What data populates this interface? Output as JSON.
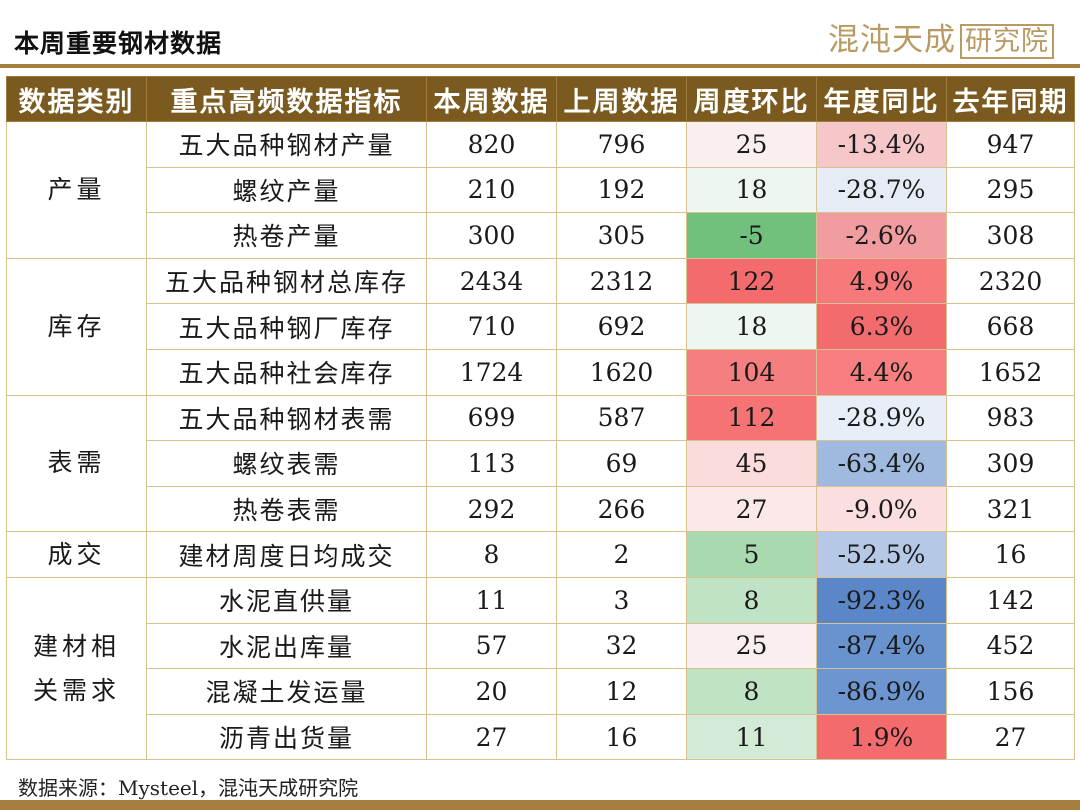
{
  "header": {
    "title": "本周重要钢材数据",
    "brand_part1": "混沌天成",
    "brand_part2": "研究院"
  },
  "table": {
    "columns": [
      "数据类别",
      "重点高频数据指标",
      "本周数据",
      "上周数据",
      "周度环比",
      "年度同比",
      "去年同期"
    ],
    "groups": [
      {
        "category": "产量",
        "rows": [
          {
            "indicator": "五大品种钢材产量",
            "this_week": "820",
            "last_week": "796",
            "wow": "25",
            "yoy": "-13.4%",
            "last_year": "947",
            "wow_color": "#fbeeef",
            "yoy_color": "#f6c7c9"
          },
          {
            "indicator": "螺纹产量",
            "this_week": "210",
            "last_week": "192",
            "wow": "18",
            "yoy": "-28.7%",
            "last_year": "295",
            "wow_color": "#eef7ef",
            "yoy_color": "#e6ecf6"
          },
          {
            "indicator": "热卷产量",
            "this_week": "300",
            "last_week": "305",
            "wow": "-5",
            "yoy": "-2.6%",
            "last_year": "308",
            "wow_color": "#72c07e",
            "yoy_color": "#f19c9e"
          }
        ]
      },
      {
        "category": "库存",
        "rows": [
          {
            "indicator": "五大品种钢材总库存",
            "this_week": "2434",
            "last_week": "2312",
            "wow": "122",
            "yoy": "4.9%",
            "last_year": "2320",
            "wow_color": "#f46b6d",
            "yoy_color": "#f7797b"
          },
          {
            "indicator": "五大品种钢厂库存",
            "this_week": "710",
            "last_week": "692",
            "wow": "18",
            "yoy": "6.3%",
            "last_year": "668",
            "wow_color": "#eef7ef",
            "yoy_color": "#f46b6d"
          },
          {
            "indicator": "五大品种社会库存",
            "this_week": "1724",
            "last_week": "1620",
            "wow": "104",
            "yoy": "4.4%",
            "last_year": "1652",
            "wow_color": "#f57e80",
            "yoy_color": "#f77f81"
          }
        ]
      },
      {
        "category": "表需",
        "rows": [
          {
            "indicator": "五大品种钢材表需",
            "this_week": "699",
            "last_week": "587",
            "wow": "112",
            "yoy": "-28.9%",
            "last_year": "983",
            "wow_color": "#f57375",
            "yoy_color": "#e8eef8"
          },
          {
            "indicator": "螺纹表需",
            "this_week": "113",
            "last_week": "69",
            "wow": "45",
            "yoy": "-63.4%",
            "last_year": "309",
            "wow_color": "#fadcdd",
            "yoy_color": "#9fb9df"
          },
          {
            "indicator": "热卷表需",
            "this_week": "292",
            "last_week": "266",
            "wow": "27",
            "yoy": "-9.0%",
            "last_year": "321",
            "wow_color": "#fbe9ea",
            "yoy_color": "#fbdedf"
          }
        ]
      },
      {
        "category": "成交",
        "rows": [
          {
            "indicator": "建材周度日均成交",
            "this_week": "8",
            "last_week": "2",
            "wow": "5",
            "yoy": "-52.5%",
            "last_year": "16",
            "wow_color": "#a8d9af",
            "yoy_color": "#b5c9e7"
          }
        ]
      },
      {
        "category": "建材相关需求",
        "rows": [
          {
            "indicator": "水泥直供量",
            "this_week": "11",
            "last_week": "3",
            "wow": "8",
            "yoy": "-92.3%",
            "last_year": "142",
            "wow_color": "#bfe3c4",
            "yoy_color": "#5b87c9"
          },
          {
            "indicator": "水泥出库量",
            "this_week": "57",
            "last_week": "32",
            "wow": "25",
            "yoy": "-87.4%",
            "last_year": "452",
            "wow_color": "#fbeeef",
            "yoy_color": "#6993cf"
          },
          {
            "indicator": "混凝土发运量",
            "this_week": "20",
            "last_week": "12",
            "wow": "8",
            "yoy": "-86.9%",
            "last_year": "156",
            "wow_color": "#bfe3c4",
            "yoy_color": "#6d96d0"
          },
          {
            "indicator": "沥青出货量",
            "this_week": "27",
            "last_week": "16",
            "wow": "11",
            "yoy": "1.9%",
            "last_year": "27",
            "wow_color": "#d3ebd6",
            "yoy_color": "#f46b6d"
          }
        ]
      }
    ]
  },
  "footer": {
    "source": "数据来源：Mysteel，混沌天成研究院"
  }
}
